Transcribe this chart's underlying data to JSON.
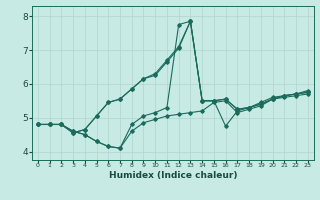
{
  "xlabel": "Humidex (Indice chaleur)",
  "background_color": "#c8eae5",
  "grid_color": "#b0d4ce",
  "line_color": "#1a6b5a",
  "xlim": [
    -0.5,
    23.5
  ],
  "ylim": [
    3.75,
    8.3
  ],
  "xticks": [
    0,
    1,
    2,
    3,
    4,
    5,
    6,
    7,
    8,
    9,
    10,
    11,
    12,
    13,
    14,
    15,
    16,
    17,
    18,
    19,
    20,
    21,
    22,
    23
  ],
  "yticks": [
    4,
    5,
    6,
    7,
    8
  ],
  "lines": [
    {
      "x": [
        0,
        1,
        2,
        3,
        4,
        5,
        6,
        7,
        8,
        9,
        10,
        11,
        12,
        13,
        14,
        15,
        16,
        17,
        18,
        19,
        20,
        21,
        22,
        23
      ],
      "y": [
        4.8,
        4.8,
        4.8,
        4.6,
        4.5,
        4.3,
        4.15,
        4.1,
        4.6,
        4.85,
        4.95,
        5.05,
        5.1,
        5.15,
        5.2,
        5.45,
        5.5,
        5.15,
        5.25,
        5.35,
        5.55,
        5.6,
        5.65,
        5.7
      ]
    },
    {
      "x": [
        0,
        1,
        2,
        3,
        4,
        5,
        6,
        7,
        8,
        9,
        10,
        11,
        12,
        13,
        14,
        15,
        16,
        17,
        18,
        19,
        20,
        21,
        22,
        23
      ],
      "y": [
        4.8,
        4.8,
        4.8,
        4.6,
        4.5,
        4.3,
        4.15,
        4.1,
        4.8,
        5.05,
        5.15,
        5.3,
        7.75,
        7.85,
        5.5,
        5.5,
        4.75,
        5.2,
        5.3,
        5.4,
        5.55,
        5.65,
        5.7,
        5.75
      ]
    },
    {
      "x": [
        0,
        1,
        2,
        3,
        4,
        5,
        6,
        7,
        8,
        9,
        10,
        11,
        12,
        13,
        14,
        15,
        16,
        17,
        18,
        19,
        20,
        21,
        22,
        23
      ],
      "y": [
        4.8,
        4.8,
        4.8,
        4.55,
        4.65,
        5.05,
        5.45,
        5.55,
        5.85,
        6.15,
        6.25,
        6.65,
        7.05,
        7.85,
        5.5,
        5.5,
        5.55,
        5.25,
        5.3,
        5.4,
        5.55,
        5.65,
        5.7,
        5.75
      ]
    },
    {
      "x": [
        0,
        1,
        2,
        3,
        4,
        5,
        6,
        7,
        8,
        9,
        10,
        11,
        12,
        13,
        14,
        15,
        16,
        17,
        18,
        19,
        20,
        21,
        22,
        23
      ],
      "y": [
        4.8,
        4.8,
        4.8,
        4.55,
        4.65,
        5.05,
        5.45,
        5.55,
        5.85,
        6.15,
        6.3,
        6.7,
        7.1,
        7.85,
        5.5,
        5.5,
        5.55,
        5.25,
        5.3,
        5.45,
        5.6,
        5.65,
        5.7,
        5.8
      ]
    }
  ]
}
